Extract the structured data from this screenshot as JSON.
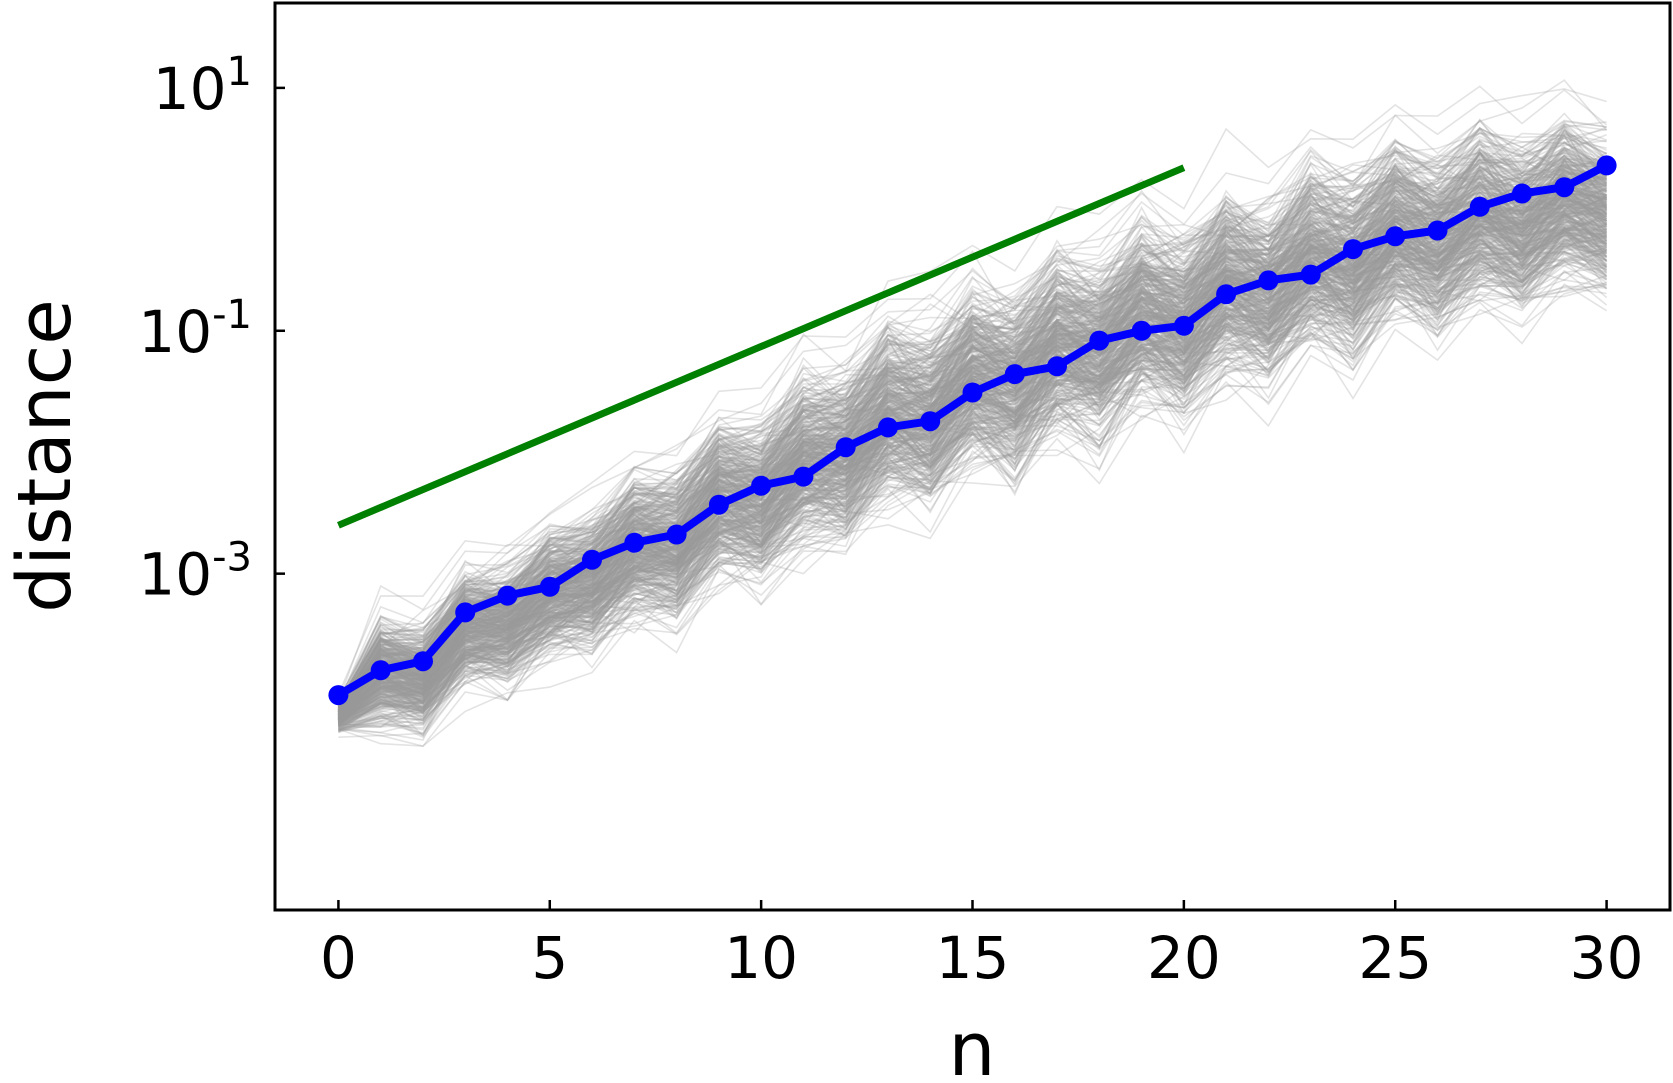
{
  "chart_data": {
    "type": "line",
    "title": "",
    "xlabel": "n",
    "ylabel": "distance",
    "x_scale": "linear",
    "y_scale": "log",
    "xlim": [
      -1.5,
      31.5
    ],
    "ylim": [
      1.7e-06,
      50
    ],
    "x_ticks": [
      0,
      5,
      10,
      15,
      20,
      25,
      30
    ],
    "x_tick_labels": [
      "0",
      "5",
      "10",
      "15",
      "20",
      "25",
      "30"
    ],
    "y_ticks": [
      {
        "value": 0.001,
        "base": "10",
        "exp": "-3"
      },
      {
        "value": 0.1,
        "base": "10",
        "exp": "-1"
      },
      {
        "value": 10,
        "base": "10",
        "exp": "1"
      }
    ],
    "grid": false,
    "legend": "none",
    "colors": {
      "mean": "#0000ff",
      "reference": "#008000",
      "trajectories": "#999999"
    },
    "series": [
      {
        "color": "#0000ff",
        "marker": "circle",
        "x": [
          0,
          1,
          2,
          3,
          4,
          5,
          6,
          7,
          8,
          9,
          10,
          11,
          12,
          13,
          14,
          15,
          16,
          17,
          18,
          19,
          20,
          21,
          22,
          23,
          24,
          25,
          26,
          27,
          28,
          29,
          30
        ],
        "values": [
          0.0001,
          0.00016,
          0.00019,
          0.00048,
          0.00066,
          0.00078,
          0.0013,
          0.0018,
          0.0021,
          0.0037,
          0.0053,
          0.0063,
          0.011,
          0.016,
          0.018,
          0.031,
          0.044,
          0.051,
          0.083,
          0.1,
          0.11,
          0.2,
          0.26,
          0.29,
          0.47,
          0.6,
          0.67,
          1.05,
          1.35,
          1.52,
          2.3
        ]
      },
      {
        "color": "#008000",
        "x": [
          0,
          20
        ],
        "values": [
          0.0025,
          2.2
        ]
      }
    ],
    "band": {
      "color": "#999999",
      "count": 420,
      "description_level": "gray ensemble of individual trajectories",
      "x": [
        0,
        1,
        2,
        3,
        4,
        5,
        6,
        7,
        8,
        9,
        10,
        11,
        12,
        13,
        14,
        15,
        16,
        17,
        18,
        19,
        20,
        21,
        22,
        23,
        24,
        25,
        26,
        27,
        28,
        29,
        30
      ],
      "low": [
        4e-05,
        1.8e-05,
        2.2e-05,
        4e-05,
        5e-05,
        6e-05,
        9e-05,
        0.0001,
        0.00013,
        0.0002,
        0.00025,
        0.0003,
        0.0005,
        0.0007,
        0.0009,
        0.0012,
        0.0016,
        0.002,
        0.003,
        0.004,
        0.005,
        0.007,
        0.009,
        0.011,
        0.015,
        0.02,
        0.025,
        0.03,
        0.04,
        0.05,
        0.06
      ],
      "high": [
        0.00012,
        0.001,
        0.0011,
        0.0025,
        0.004,
        0.006,
        0.012,
        0.02,
        0.035,
        0.06,
        0.1,
        0.17,
        0.3,
        0.45,
        0.7,
        1.0,
        1.4,
        1.9,
        2.6,
        3.2,
        4.0,
        5.5,
        7.5,
        10,
        13,
        16,
        18,
        19,
        20,
        21,
        22
      ]
    }
  }
}
